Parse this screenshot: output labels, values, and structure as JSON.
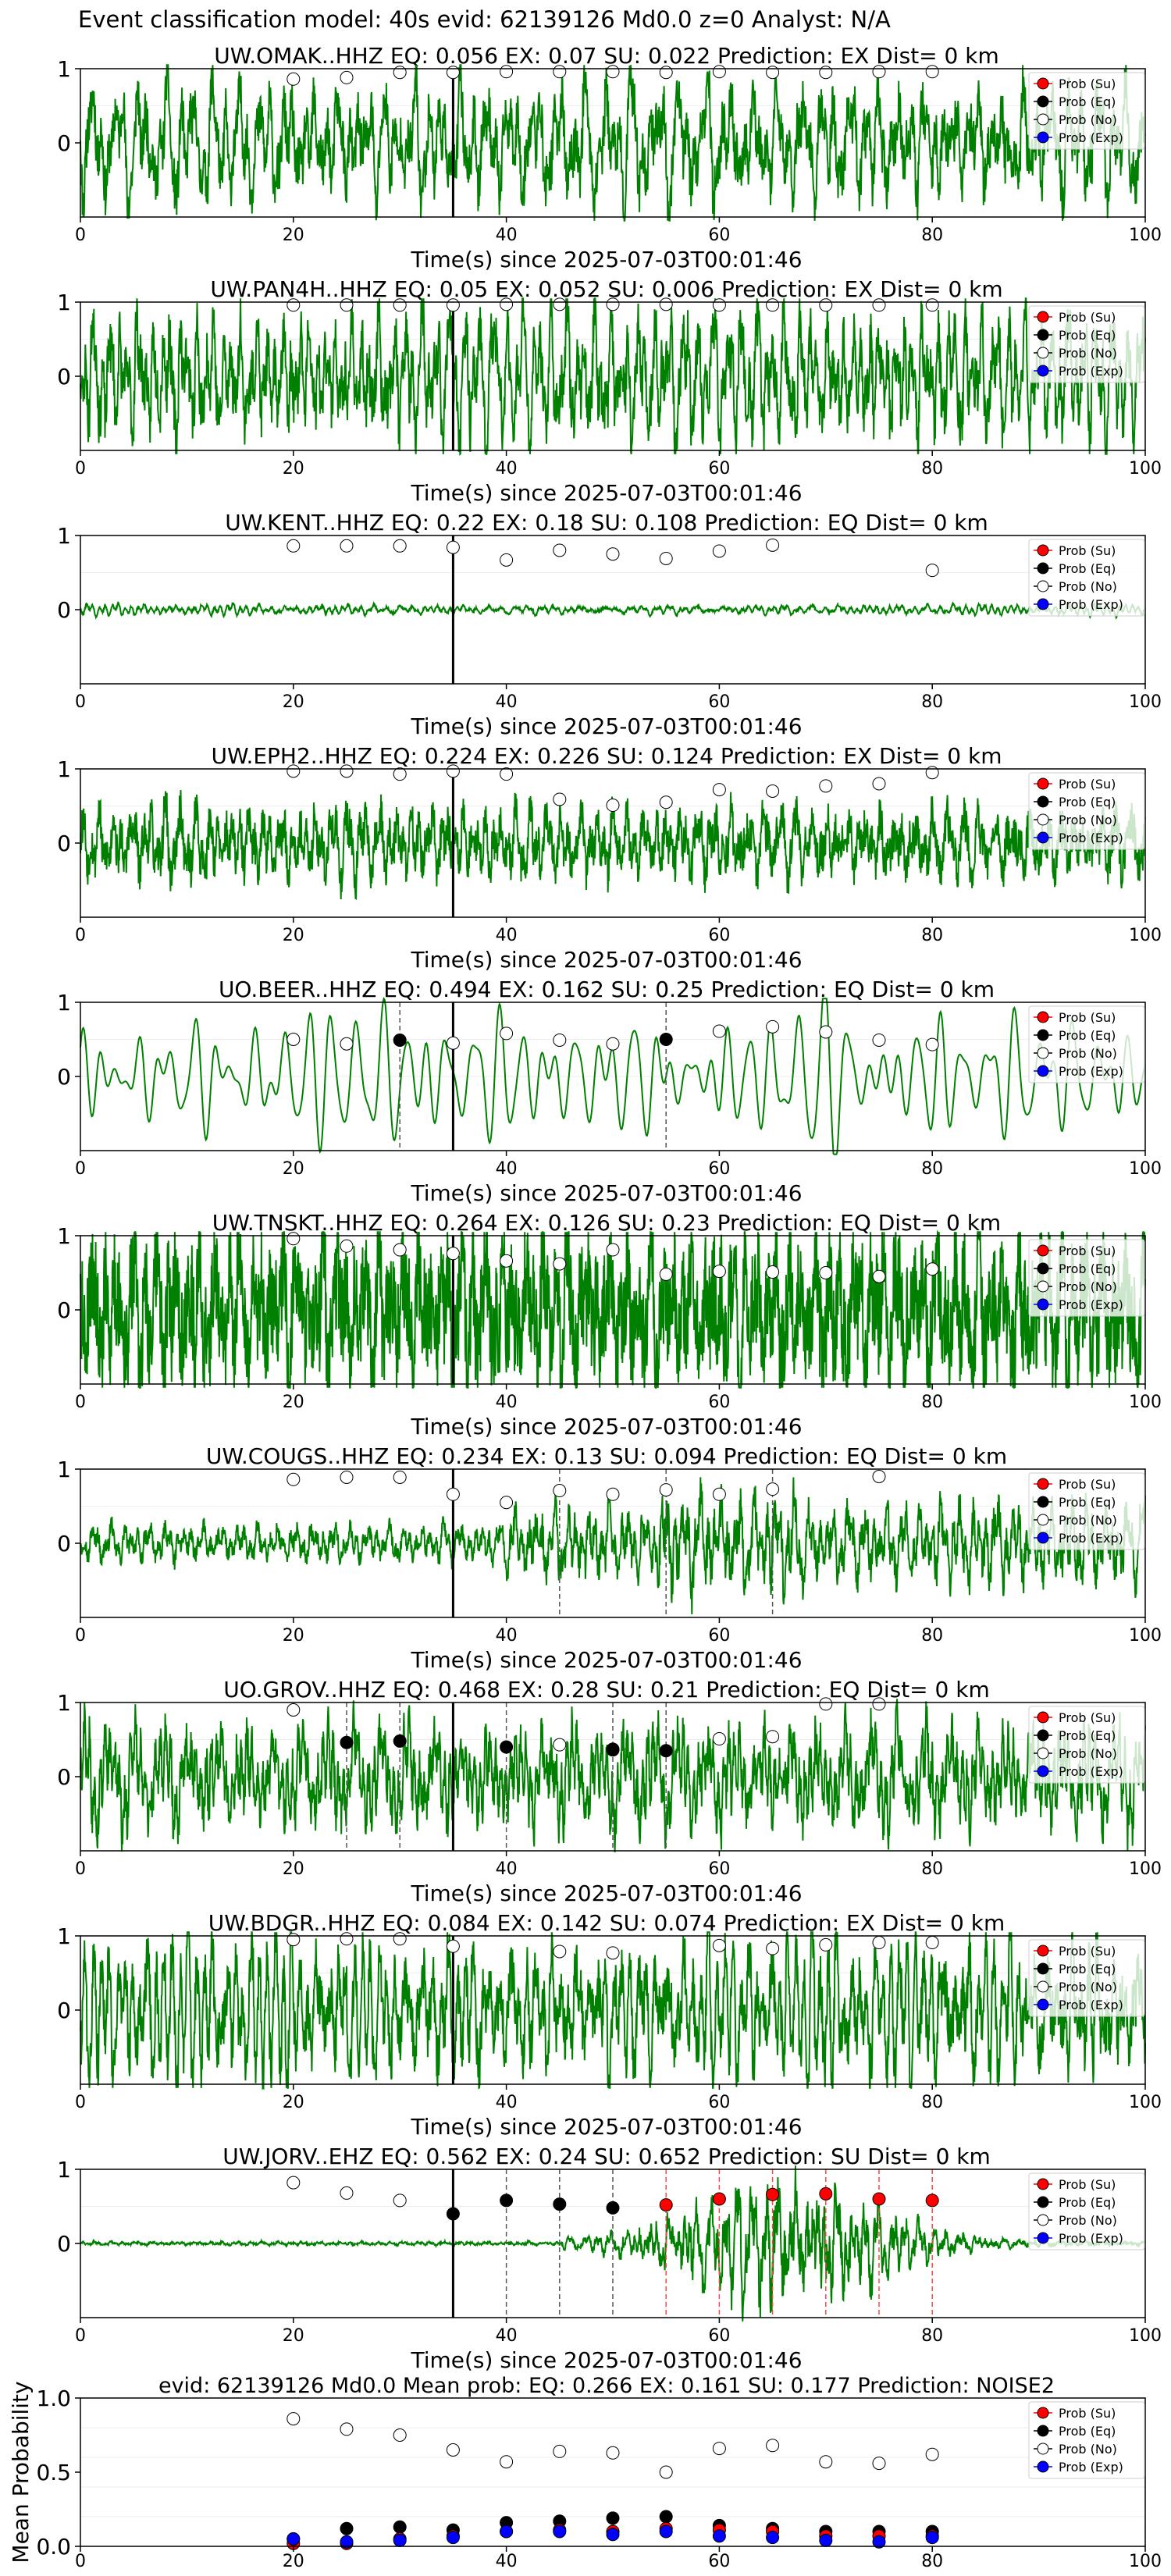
{
  "suptitle": "Event classification model: 40s evid: 62139126 Md0.0 z=0 Analyst: N/A",
  "xlabel": "Time(s) since 2025-07-03T00:01:46",
  "legend_items": [
    {
      "label": "Prob (Su)",
      "color": "#ff0000",
      "filled": true
    },
    {
      "label": "Prob (Eq)",
      "color": "#000000",
      "filled": true
    },
    {
      "label": "Prob (No)",
      "color": "#ffffff",
      "filled": false
    },
    {
      "label": "Prob (Exp)",
      "color": "#0000ff",
      "filled": true
    }
  ],
  "colors": {
    "waveform": "#008000",
    "su": "#ff0000",
    "eq": "#000000",
    "no": "#ffffff",
    "exp": "#0000ff"
  },
  "chart_data": [
    {
      "type": "line",
      "title": "UW.OMAK..HHZ   EQ: 0.056  EX: 0.07  SU: 0.022   Prediction: EX    Dist= 0 km",
      "xlim": [
        0,
        100
      ],
      "x_ticks": [
        0,
        20,
        40,
        60,
        80,
        100
      ],
      "y_ticks": [
        0,
        1
      ],
      "waveform": {
        "style": "dense",
        "amplitude": 0.85,
        "seed": 11
      },
      "pick_time": 35,
      "prob_times": [
        20,
        25,
        30,
        35,
        40,
        45,
        50,
        55,
        60,
        65,
        70,
        75,
        80
      ],
      "prob_no": [
        0.86,
        0.88,
        0.95,
        0.95,
        0.96,
        0.96,
        0.96,
        0.95,
        0.96,
        0.95,
        0.95,
        0.96,
        0.96
      ],
      "prob_eq": [],
      "prob_su": [],
      "prob_exp": [],
      "dashed_eq": [],
      "dashed_su": []
    },
    {
      "type": "line",
      "title": "UW.PAN4H..HHZ   EQ: 0.05  EX: 0.052  SU: 0.006   Prediction: EX    Dist= 0 km",
      "xlim": [
        0,
        100
      ],
      "x_ticks": [
        0,
        20,
        40,
        60,
        80,
        100
      ],
      "y_ticks": [
        0,
        1
      ],
      "waveform": {
        "style": "dense",
        "amplitude": 0.9,
        "seed": 23
      },
      "pick_time": 35,
      "prob_times": [
        20,
        25,
        30,
        35,
        40,
        45,
        50,
        55,
        60,
        65,
        70,
        75,
        80
      ],
      "prob_no": [
        0.96,
        0.96,
        0.96,
        0.96,
        0.97,
        0.97,
        0.97,
        0.97,
        0.96,
        0.96,
        0.96,
        0.96,
        0.96
      ],
      "prob_eq": [],
      "prob_su": [],
      "prob_exp": [],
      "dashed_eq": [],
      "dashed_su": []
    },
    {
      "type": "line",
      "title": "UW.KENT..HHZ   EQ: 0.22  EX: 0.18  SU: 0.108   Prediction: EQ    Dist= 0 km",
      "xlim": [
        0,
        100
      ],
      "x_ticks": [
        0,
        20,
        40,
        60,
        80,
        100
      ],
      "y_ticks": [
        0,
        1
      ],
      "waveform": {
        "style": "quiet",
        "amplitude": 0.1,
        "seed": 37
      },
      "pick_time": 35,
      "prob_times": [
        20,
        25,
        30,
        35,
        40,
        45,
        50,
        55,
        60,
        65,
        80
      ],
      "prob_no": [
        0.86,
        0.86,
        0.86,
        0.84,
        0.67,
        0.8,
        0.75,
        0.69,
        0.79,
        0.87,
        0.53
      ],
      "prob_eq": [],
      "prob_su": [],
      "prob_exp": [],
      "dashed_eq": [],
      "dashed_su": []
    },
    {
      "type": "line",
      "title": "UW.EPH2..HHZ   EQ: 0.224  EX: 0.226  SU: 0.124   Prediction: EX    Dist= 0 km",
      "xlim": [
        0,
        100
      ],
      "x_ticks": [
        0,
        20,
        40,
        60,
        80,
        100
      ],
      "y_ticks": [
        0,
        1
      ],
      "waveform": {
        "style": "dense",
        "amplitude": 0.7,
        "seed": 53
      },
      "pick_time": 35,
      "prob_times": [
        20,
        25,
        30,
        35,
        40,
        45,
        50,
        55,
        60,
        65,
        70,
        75,
        80
      ],
      "prob_no": [
        0.97,
        0.97,
        0.93,
        0.97,
        0.93,
        0.59,
        0.51,
        0.55,
        0.72,
        0.7,
        0.77,
        0.8,
        0.95
      ],
      "prob_eq": [],
      "prob_su": [],
      "prob_exp": [],
      "dashed_eq": [],
      "dashed_su": []
    },
    {
      "type": "line",
      "title": "UO.BEER..HHZ   EQ: 0.494  EX: 0.162  SU: 0.25   Prediction: EQ    Dist= 0 km",
      "xlim": [
        0,
        100
      ],
      "x_ticks": [
        0,
        20,
        40,
        60,
        80,
        100
      ],
      "y_ticks": [
        0,
        1
      ],
      "waveform": {
        "style": "smooth",
        "amplitude": 0.85,
        "seed": 67
      },
      "pick_time": 35,
      "prob_times": [
        20,
        25,
        35,
        40,
        45,
        50,
        60,
        65,
        70,
        75,
        80
      ],
      "prob_no": [
        0.5,
        0.44,
        0.45,
        0.58,
        0.49,
        0.44,
        0.61,
        0.67,
        0.6,
        0.49,
        0.43
      ],
      "prob_eq": [
        [
          30,
          0.49
        ],
        [
          55,
          0.5
        ]
      ],
      "prob_su": [],
      "prob_exp": [],
      "dashed_eq": [
        30,
        55
      ],
      "dashed_su": []
    },
    {
      "type": "line",
      "title": "UW.TNSKT..HHZ   EQ: 0.264  EX: 0.126  SU: 0.23   Prediction: EQ    Dist= 0 km",
      "xlim": [
        0,
        100
      ],
      "x_ticks": [
        0,
        20,
        40,
        60,
        80,
        100
      ],
      "y_ticks": [
        0,
        1
      ],
      "waveform": {
        "style": "noisy",
        "amplitude": 0.75,
        "seed": 79
      },
      "pick_time": 35,
      "prob_times": [
        20,
        25,
        30,
        35,
        40,
        45,
        50,
        55,
        60,
        65,
        70,
        75,
        80
      ],
      "prob_no": [
        0.96,
        0.86,
        0.81,
        0.76,
        0.66,
        0.62,
        0.81,
        0.48,
        0.52,
        0.51,
        0.5,
        0.45,
        0.55
      ],
      "prob_eq": [],
      "prob_su": [],
      "prob_exp": [],
      "dashed_eq": [],
      "dashed_su": []
    },
    {
      "type": "line",
      "title": "UW.COUGS..HHZ   EQ: 0.234  EX: 0.13  SU: 0.094   Prediction: EQ    Dist= 0 km",
      "xlim": [
        0,
        100
      ],
      "x_ticks": [
        0,
        20,
        40,
        60,
        80,
        100
      ],
      "y_ticks": [
        0,
        1
      ],
      "waveform": {
        "style": "bursty",
        "amplitude": 0.7,
        "seed": 97
      },
      "pick_time": 35,
      "prob_times": [
        20,
        25,
        30,
        35,
        40,
        45,
        50,
        55,
        60,
        65,
        75
      ],
      "prob_no": [
        0.86,
        0.89,
        0.89,
        0.66,
        0.55,
        0.71,
        0.66,
        0.72,
        0.66,
        0.73,
        0.9
      ],
      "prob_eq": [],
      "prob_su": [],
      "prob_exp": [],
      "dashed_eq": [
        45,
        55,
        65
      ],
      "dashed_su": []
    },
    {
      "type": "line",
      "title": "UO.GROV..HHZ   EQ: 0.468  EX: 0.28  SU: 0.21   Prediction: EQ    Dist= 0 km",
      "xlim": [
        0,
        100
      ],
      "x_ticks": [
        0,
        20,
        40,
        60,
        80,
        100
      ],
      "y_ticks": [
        0,
        1
      ],
      "waveform": {
        "style": "dense",
        "amplitude": 0.75,
        "seed": 113
      },
      "pick_time": 35,
      "prob_times": [
        20,
        45,
        50,
        60,
        65,
        70,
        75
      ],
      "prob_no": [
        0.9,
        0.43,
        0.36,
        0.51,
        0.54,
        0.98,
        0.98
      ],
      "prob_eq": [
        [
          25,
          0.46
        ],
        [
          30,
          0.48
        ],
        [
          40,
          0.4
        ],
        [
          50,
          0.37
        ],
        [
          55,
          0.35
        ]
      ],
      "prob_su": [],
      "prob_exp": [],
      "dashed_eq": [
        25,
        30,
        40,
        50,
        55
      ],
      "dashed_su": []
    },
    {
      "type": "line",
      "title": "UW.BDGR..HHZ   EQ: 0.084  EX: 0.142  SU: 0.074   Prediction: EX    Dist= 0 km",
      "xlim": [
        0,
        100
      ],
      "x_ticks": [
        0,
        20,
        40,
        60,
        80,
        100
      ],
      "y_ticks": [
        0,
        1
      ],
      "waveform": {
        "style": "dense",
        "amplitude": 0.95,
        "seed": 131
      },
      "pick_time": 35,
      "prob_times": [
        20,
        25,
        30,
        35,
        45,
        50,
        60,
        65,
        70,
        75,
        80
      ],
      "prob_no": [
        0.95,
        0.96,
        0.96,
        0.86,
        0.79,
        0.77,
        0.87,
        0.83,
        0.88,
        0.91,
        0.91
      ],
      "prob_eq": [],
      "prob_su": [],
      "prob_exp": [],
      "dashed_eq": [],
      "dashed_su": []
    },
    {
      "type": "line",
      "title": "UW.JORV..EHZ   EQ: 0.562  EX: 0.24  SU: 0.652   Prediction: SU    Dist= 0 km",
      "xlim": [
        0,
        100
      ],
      "x_ticks": [
        0,
        20,
        40,
        60,
        80,
        100
      ],
      "y_ticks": [
        0,
        1
      ],
      "waveform": {
        "style": "event",
        "amplitude": 0.9,
        "seed": 151
      },
      "pick_time": 35,
      "prob_times": [
        20,
        25,
        30
      ],
      "prob_no": [
        0.82,
        0.68,
        0.58
      ],
      "prob_eq": [
        [
          35,
          0.4
        ],
        [
          40,
          0.58
        ],
        [
          45,
          0.53
        ],
        [
          50,
          0.48
        ]
      ],
      "prob_su": [
        [
          55,
          0.52
        ],
        [
          60,
          0.6
        ],
        [
          65,
          0.66
        ],
        [
          70,
          0.67
        ],
        [
          75,
          0.6
        ],
        [
          80,
          0.58
        ]
      ],
      "prob_exp": [],
      "dashed_eq": [
        40,
        45,
        50
      ],
      "dashed_su": [
        55,
        60,
        65,
        70,
        75,
        80
      ]
    },
    {
      "type": "scatter",
      "title": "evid: 62139126  Md0.0   Mean prob:   EQ: 0.266  EX: 0.161  SU: 0.177   Prediction: NOISE2",
      "ylabel": "Mean Probability",
      "xlim": [
        0,
        100
      ],
      "ylim": [
        0,
        1
      ],
      "x_ticks": [
        0,
        20,
        40,
        60,
        80,
        100
      ],
      "y_ticks": [
        0.0,
        0.5,
        1.0
      ],
      "x": [
        20,
        25,
        30,
        35,
        40,
        45,
        50,
        55,
        60,
        65,
        70,
        75,
        80
      ],
      "series": [
        {
          "name": "Prob (Su)",
          "values": [
            0.02,
            0.02,
            0.05,
            0.07,
            0.1,
            0.11,
            0.1,
            0.12,
            0.11,
            0.1,
            0.07,
            0.07,
            0.07
          ]
        },
        {
          "name": "Prob (Eq)",
          "values": [
            0.05,
            0.12,
            0.13,
            0.11,
            0.16,
            0.17,
            0.19,
            0.2,
            0.14,
            0.12,
            0.1,
            0.1,
            0.1
          ]
        },
        {
          "name": "Prob (No)",
          "values": [
            0.86,
            0.79,
            0.75,
            0.65,
            0.57,
            0.64,
            0.63,
            0.5,
            0.66,
            0.68,
            0.57,
            0.56,
            0.62
          ]
        },
        {
          "name": "Prob (Exp)",
          "values": [
            0.05,
            0.03,
            0.04,
            0.06,
            0.1,
            0.1,
            0.08,
            0.1,
            0.07,
            0.06,
            0.04,
            0.03,
            0.06
          ]
        }
      ]
    }
  ]
}
